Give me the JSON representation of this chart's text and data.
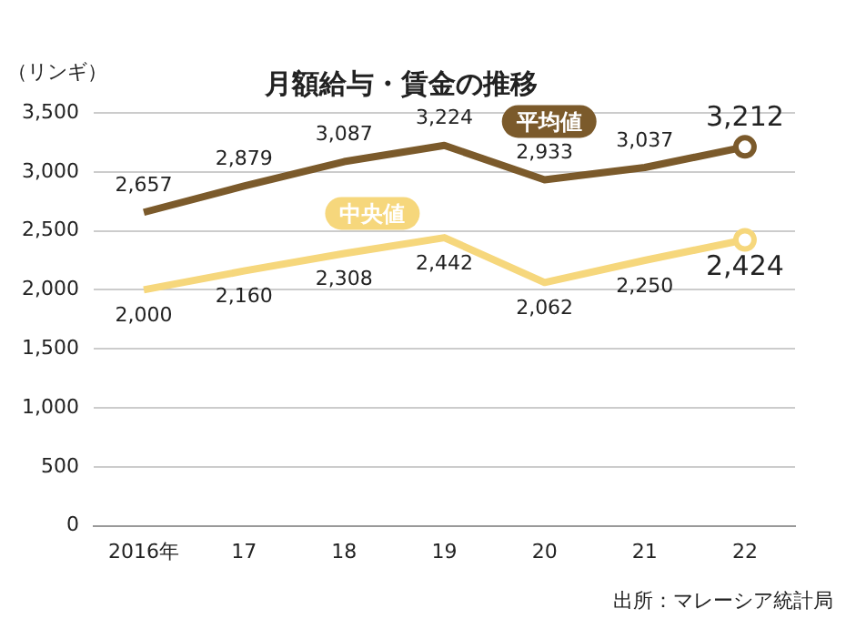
{
  "chart_data": {
    "type": "line",
    "title": "月額給与・賃金の推移",
    "ylabel": "（リンギ）",
    "annotations": [
      "出所：マレーシア統計局"
    ],
    "categories": [
      "2016年",
      "17",
      "18",
      "19",
      "20",
      "21",
      "22"
    ],
    "series": [
      {
        "name": "平均値",
        "color": "#7b5a2b",
        "values": [
          2657,
          2879,
          3087,
          3224,
          2933,
          3037,
          3212
        ],
        "value_labels": [
          "2,657",
          "2,879",
          "3,087",
          "3,224",
          "2,933",
          "3,037",
          "3,212"
        ]
      },
      {
        "name": "中央値",
        "color": "#f6d77c",
        "values": [
          2000,
          2160,
          2308,
          2442,
          2062,
          2250,
          2424
        ],
        "value_labels": [
          "2,000",
          "2,160",
          "2,308",
          "2,442",
          "2,062",
          "2,250",
          "2,424"
        ]
      }
    ],
    "ylim": [
      0,
      3500
    ],
    "yticks": [
      0,
      500,
      {
        "value": 1000,
        "label": "1,000"
      },
      {
        "value": 1500,
        "label": "1,500"
      },
      {
        "value": 2000,
        "label": "2,000"
      },
      {
        "value": 2500,
        "label": "2,500"
      },
      {
        "value": 3000,
        "label": "3,000"
      },
      {
        "value": 3500,
        "label": "3,500"
      }
    ],
    "grid": "y",
    "legend": false,
    "line_style": "solid"
  }
}
